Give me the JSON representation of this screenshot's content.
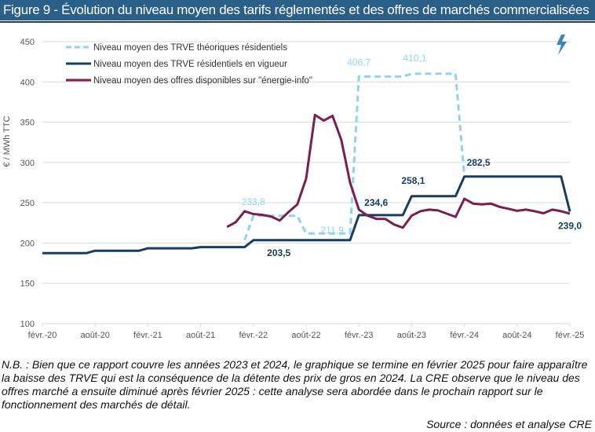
{
  "title": "Figure 9 - Évolution du niveau moyen des tarifs réglementés et des offres de marchés commercialisées",
  "note": "N.B. : Bien que ce rapport couvre les années 2023 et 2024, le graphique se termine en février 2025 pour faire apparaître la baisse des TRVE qui est la conséquence de la détente des prix de gros en 2024. La CRE observe que le niveau des offres marché a ensuite diminué après février 2025 : cette analyse sera abordée dans le prochain rapport sur le fonctionnement des marchés de détail.",
  "source": "Source : données et analyse CRE",
  "icon": "lightning-bolt-icon",
  "chart_data": {
    "type": "line",
    "title": "",
    "ylabel": "€ / MWh TTC",
    "xlabel": "",
    "ylim": [
      100,
      450
    ],
    "yticks": [
      100,
      150,
      200,
      250,
      300,
      350,
      400,
      450
    ],
    "xlim": [
      "2020-02",
      "2025-02"
    ],
    "xtick_values": [
      "2020-02",
      "2020-08",
      "2021-02",
      "2021-08",
      "2022-02",
      "2022-08",
      "2023-02",
      "2023-08",
      "2024-02",
      "2024-08",
      "2025-02"
    ],
    "xtick_labels": [
      "févr.-20",
      "août-20",
      "févr.-21",
      "août-21",
      "févr.-22",
      "août-22",
      "févr.-23",
      "août-23",
      "févr.-24",
      "août-24",
      "févr.-25"
    ],
    "grid": true,
    "legend_position": "top-left",
    "series": [
      {
        "name": "Niveau moyen des TRVE théoriques résidentiels",
        "color": "#8fd3f4",
        "style": "dashed",
        "points": [
          [
            "2022-01",
            203.5
          ],
          [
            "2022-02",
            233.8
          ],
          [
            "2022-07",
            233.8
          ],
          [
            "2022-08",
            211.9
          ],
          [
            "2023-01",
            211.9
          ],
          [
            "2023-02",
            406.7
          ],
          [
            "2023-07",
            406.7
          ],
          [
            "2023-08",
            410.1
          ],
          [
            "2024-01",
            410.1
          ],
          [
            "2024-02",
            282.5
          ]
        ]
      },
      {
        "name": "Niveau moyen des TRVE résidentiels en vigueur",
        "color": "#173d63",
        "style": "solid",
        "points": [
          [
            "2020-02",
            187.5
          ],
          [
            "2020-07",
            187.5
          ],
          [
            "2020-08",
            190.5
          ],
          [
            "2021-01",
            190.5
          ],
          [
            "2021-02",
            193.5
          ],
          [
            "2021-07",
            193.5
          ],
          [
            "2021-08",
            195
          ],
          [
            "2022-01",
            195
          ],
          [
            "2022-02",
            203.5
          ],
          [
            "2023-01",
            203.5
          ],
          [
            "2023-02",
            234.6
          ],
          [
            "2023-07",
            234.6
          ],
          [
            "2023-08",
            258.1
          ],
          [
            "2024-01",
            258.1
          ],
          [
            "2024-02",
            282.5
          ],
          [
            "2025-01",
            282.5
          ],
          [
            "2025-02",
            239.0
          ]
        ]
      },
      {
        "name": "Niveau moyen des offres disponibles sur \"énergie-info\"",
        "color": "#7a1f4e",
        "style": "solid",
        "points": [
          [
            "2021-11",
            220
          ],
          [
            "2021-12",
            226
          ],
          [
            "2022-01",
            239.5
          ],
          [
            "2022-02",
            236
          ],
          [
            "2022-03",
            235
          ],
          [
            "2022-04",
            233
          ],
          [
            "2022-05",
            228
          ],
          [
            "2022-06",
            238.5
          ],
          [
            "2022-07",
            248
          ],
          [
            "2022-08",
            280
          ],
          [
            "2022-09",
            359
          ],
          [
            "2022-10",
            352
          ],
          [
            "2022-11",
            358
          ],
          [
            "2022-12",
            328
          ],
          [
            "2023-01",
            275
          ],
          [
            "2023-02",
            241.5
          ],
          [
            "2023-03",
            234
          ],
          [
            "2023-04",
            230
          ],
          [
            "2023-05",
            230
          ],
          [
            "2023-06",
            223
          ],
          [
            "2023-07",
            219
          ],
          [
            "2023-08",
            234
          ],
          [
            "2023-09",
            239.5
          ],
          [
            "2023-10",
            241.5
          ],
          [
            "2023-11",
            240.5
          ],
          [
            "2023-12",
            236.5
          ],
          [
            "2024-01",
            232.5
          ],
          [
            "2024-02",
            255
          ],
          [
            "2024-03",
            249
          ],
          [
            "2024-04",
            248
          ],
          [
            "2024-05",
            249
          ],
          [
            "2024-06",
            245
          ],
          [
            "2024-07",
            242.5
          ],
          [
            "2024-08",
            240
          ],
          [
            "2024-09",
            241.5
          ],
          [
            "2024-10",
            239.5
          ],
          [
            "2024-11",
            237
          ],
          [
            "2024-12",
            241.5
          ],
          [
            "2025-01",
            239.5
          ],
          [
            "2025-02",
            236.5
          ]
        ]
      }
    ],
    "data_labels": [
      {
        "series": 0,
        "x": "2022-02",
        "value": 233.8,
        "text": "233,8"
      },
      {
        "series": 0,
        "x": "2022-09",
        "value": 211.9,
        "text": "211,9"
      },
      {
        "series": 0,
        "x": "2023-02",
        "value": 406.7,
        "text": "406,7"
      },
      {
        "series": 0,
        "x": "2023-08",
        "value": 410.1,
        "text": "410,1"
      },
      {
        "series": 1,
        "x": "2022-04",
        "value": 203.5,
        "text": "203,5"
      },
      {
        "series": 1,
        "x": "2023-02",
        "value": 234.6,
        "text": "234,6"
      },
      {
        "series": 1,
        "x": "2023-08",
        "value": 258.1,
        "text": "258,1"
      },
      {
        "series": 1,
        "x": "2024-02",
        "value": 282.5,
        "text": "282,5"
      },
      {
        "series": 1,
        "x": "2025-02",
        "value": 239.0,
        "text": "239,0"
      }
    ]
  }
}
